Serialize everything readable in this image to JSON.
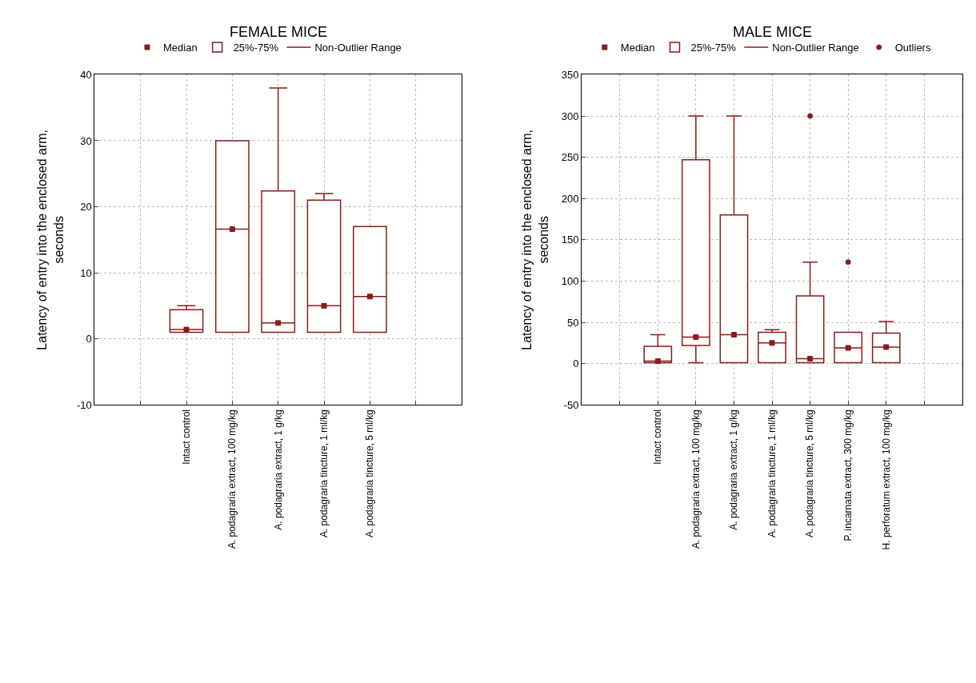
{
  "chart_data": [
    {
      "type": "box",
      "title": "FEMALE MICE",
      "ylabel": "Latency of entry into the enclosed arm, seconds",
      "categories": [
        "Intact control",
        "A. podagraria extract, 100 mg/kg",
        "A. podagraria extract, 1 g/kg",
        "A. podagraria tincture, 1 ml/kg",
        "A. podagraria tincture, 5 ml/kg"
      ],
      "ylim": [
        -10,
        40
      ],
      "yticks": [
        -10,
        0,
        10,
        20,
        30,
        40
      ],
      "grid": true,
      "legend": "top",
      "series": [
        {
          "name": "Median",
          "type": "scatter",
          "marker": "square",
          "color": "#8b1a1a",
          "values": [
            1.4,
            16.6,
            2.4,
            5,
            6.4
          ]
        },
        {
          "name": "25%-75%",
          "color": "#8b1a1a",
          "boxes": [
            {
              "low": 1,
              "q1": 1,
              "median": 1.4,
              "q3": 4.4,
              "high": 5
            },
            {
              "low": 1,
              "q1": 1,
              "median": 16.6,
              "q3": 30,
              "high": 30
            },
            {
              "low": 1,
              "q1": 1,
              "median": 2.4,
              "q3": 22.4,
              "high": 38
            },
            {
              "low": 1,
              "q1": 1,
              "median": 5,
              "q3": 21,
              "high": 22
            },
            {
              "low": 1,
              "q1": 1,
              "median": 6.4,
              "q3": 17,
              "high": 17
            }
          ]
        },
        {
          "name": "Non-Outlier Range",
          "type": "scatter",
          "color": "#8b1a1a",
          "values": [
            null,
            null,
            null,
            null,
            null
          ]
        }
      ]
    },
    {
      "type": "box",
      "title": "MALE MICE",
      "ylabel": "Latency of entry into the enclosed arm, seconds",
      "categories": [
        "Intact control",
        "A. podagraria extract, 100 mg/kg",
        "A. podagraria extract, 1 g/kg",
        "A. podagraria tincture, 1 ml/kg",
        "A. podagraria tincture, 5 ml/kg",
        "P. incarnata extract, 300 mg/kg",
        "H. perforatum extract, 100 mg/kg"
      ],
      "ylim": [
        -50,
        350
      ],
      "yticks": [
        -50,
        0,
        50,
        100,
        150,
        200,
        250,
        300,
        350
      ],
      "grid": true,
      "legend": "top",
      "series": [
        {
          "name": "Median",
          "type": "scatter",
          "marker": "square",
          "color": "#8b1a1a",
          "values": [
            3,
            32,
            35,
            25,
            6,
            19,
            20
          ]
        },
        {
          "name": "25%-75%",
          "color": "#8b1a1a",
          "boxes": [
            {
              "low": 1,
              "q1": 1,
              "median": 3,
              "q3": 21,
              "high": 35
            },
            {
              "low": 1,
              "q1": 22,
              "median": 32,
              "q3": 247,
              "high": 300
            },
            {
              "low": 1,
              "q1": 1,
              "median": 35,
              "q3": 180,
              "high": 300
            },
            {
              "low": 1,
              "q1": 1,
              "median": 25,
              "q3": 38,
              "high": 41
            },
            {
              "low": 1,
              "q1": 1,
              "median": 6,
              "q3": 82,
              "high": 123
            },
            {
              "low": 1,
              "q1": 1,
              "median": 19,
              "q3": 38,
              "high": 38
            },
            {
              "low": 1,
              "q1": 1,
              "median": 20,
              "q3": 37,
              "high": 51
            }
          ]
        },
        {
          "name": "Non-Outlier Range",
          "type": "scatter",
          "color": "#8b1a1a",
          "values": [
            null,
            null,
            null,
            null,
            null,
            null,
            null
          ]
        },
        {
          "name": "Outliers",
          "type": "scatter",
          "marker": "circle",
          "color": "#8b1a1a",
          "x": [
            "A. podagraria tincture, 5 ml/kg",
            "P. incarnata extract, 300 mg/kg"
          ],
          "values": [
            300,
            123
          ]
        }
      ]
    }
  ]
}
